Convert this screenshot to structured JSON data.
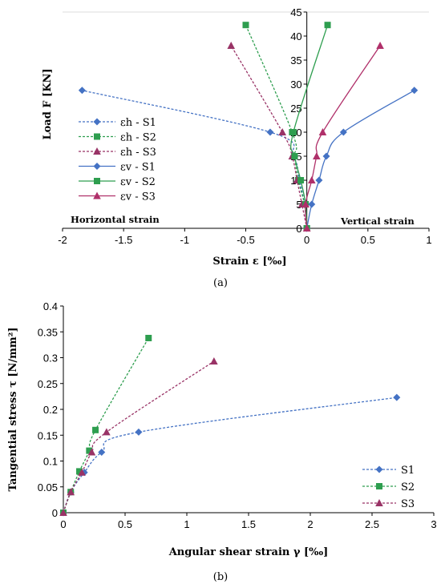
{
  "chart_data": [
    {
      "type": "scatter",
      "caption": "(a)",
      "xlabel": "Strain ε [‰]",
      "ylabel": "Load F [KN]",
      "xlim": [
        -2,
        1
      ],
      "ylim": [
        0,
        45
      ],
      "xticks": [
        "-2",
        "-1.5",
        "-1",
        "-0.5",
        "0",
        "0.5",
        "1"
      ],
      "yticks": [
        "0",
        "5",
        "10",
        "15",
        "20",
        "25",
        "30",
        "35",
        "40",
        "45"
      ],
      "y_axis_at_x": 0,
      "annotations": [
        "Horizontal strain",
        "Vertical strain"
      ],
      "legend_position": "left",
      "grid": false,
      "series": [
        {
          "name": "εh - S1",
          "color": "#4472c4",
          "dash": true,
          "marker": "diamond",
          "points": [
            [
              0,
              0
            ],
            [
              -0.02,
              5
            ],
            [
              -0.06,
              10
            ],
            [
              -0.11,
              15
            ],
            [
              -0.3,
              20
            ],
            [
              -1.84,
              28.7
            ]
          ]
        },
        {
          "name": "εh - S2",
          "color": "#2e9e4f",
          "dash": true,
          "marker": "square",
          "points": [
            [
              0,
              0
            ],
            [
              -0.02,
              5
            ],
            [
              -0.07,
              10
            ],
            [
              -0.1,
              15
            ],
            [
              -0.12,
              20
            ],
            [
              -0.5,
              42.3
            ]
          ]
        },
        {
          "name": "εh - S3",
          "color": "#993366",
          "dash": true,
          "marker": "triangle",
          "points": [
            [
              0,
              0
            ],
            [
              -0.04,
              5
            ],
            [
              -0.08,
              10
            ],
            [
              -0.12,
              15
            ],
            [
              -0.2,
              20
            ],
            [
              -0.62,
              38
            ]
          ]
        },
        {
          "name": "εv - S1",
          "color": "#4472c4",
          "dash": false,
          "marker": "diamond",
          "points": [
            [
              0,
              0
            ],
            [
              0.04,
              5
            ],
            [
              0.1,
              10
            ],
            [
              0.16,
              15
            ],
            [
              0.3,
              20
            ],
            [
              0.88,
              28.7
            ]
          ]
        },
        {
          "name": "εv - S2",
          "color": "#2e9e4f",
          "dash": false,
          "marker": "square",
          "points": [
            [
              0,
              0
            ],
            [
              -0.01,
              5
            ],
            [
              -0.05,
              10
            ],
            [
              -0.1,
              15
            ],
            [
              -0.11,
              20
            ],
            [
              0.17,
              42.3
            ]
          ]
        },
        {
          "name": "εv - S3",
          "color": "#b0306a",
          "dash": false,
          "marker": "triangle",
          "points": [
            [
              0,
              0
            ],
            [
              -0.01,
              5
            ],
            [
              0.04,
              10
            ],
            [
              0.08,
              15
            ],
            [
              0.13,
              20
            ],
            [
              0.6,
              38
            ]
          ]
        }
      ]
    },
    {
      "type": "scatter",
      "caption": "(b)",
      "xlabel": "Angular shear strain γ  [‰]",
      "ylabel": "Tangential stress τ [N/mm²]",
      "xlim": [
        0,
        3
      ],
      "ylim": [
        0,
        0.4
      ],
      "xticks": [
        "0",
        "0.5",
        "1",
        "1.5",
        "2",
        "2.5",
        "3"
      ],
      "yticks": [
        "0",
        "0.05",
        "0.1",
        "0.15",
        "0.2",
        "0.25",
        "0.3",
        "0.35",
        "0.4"
      ],
      "legend_position": "bottom-right",
      "grid": false,
      "series": [
        {
          "name": "S1",
          "color": "#4472c4",
          "dash": true,
          "marker": "diamond",
          "points": [
            [
              0,
              0
            ],
            [
              0.06,
              0.04
            ],
            [
              0.17,
              0.078
            ],
            [
              0.31,
              0.117
            ],
            [
              0.61,
              0.156
            ],
            [
              2.7,
              0.223
            ]
          ]
        },
        {
          "name": "S2",
          "color": "#2e9e4f",
          "dash": true,
          "marker": "square",
          "points": [
            [
              0,
              0
            ],
            [
              0.06,
              0.04
            ],
            [
              0.13,
              0.08
            ],
            [
              0.21,
              0.12
            ],
            [
              0.26,
              0.16
            ],
            [
              0.69,
              0.338
            ]
          ]
        },
        {
          "name": "S3",
          "color": "#993366",
          "dash": true,
          "marker": "triangle",
          "points": [
            [
              0,
              0
            ],
            [
              0.06,
              0.04
            ],
            [
              0.15,
              0.078
            ],
            [
              0.23,
              0.117
            ],
            [
              0.35,
              0.156
            ],
            [
              1.22,
              0.293
            ]
          ]
        }
      ]
    }
  ]
}
